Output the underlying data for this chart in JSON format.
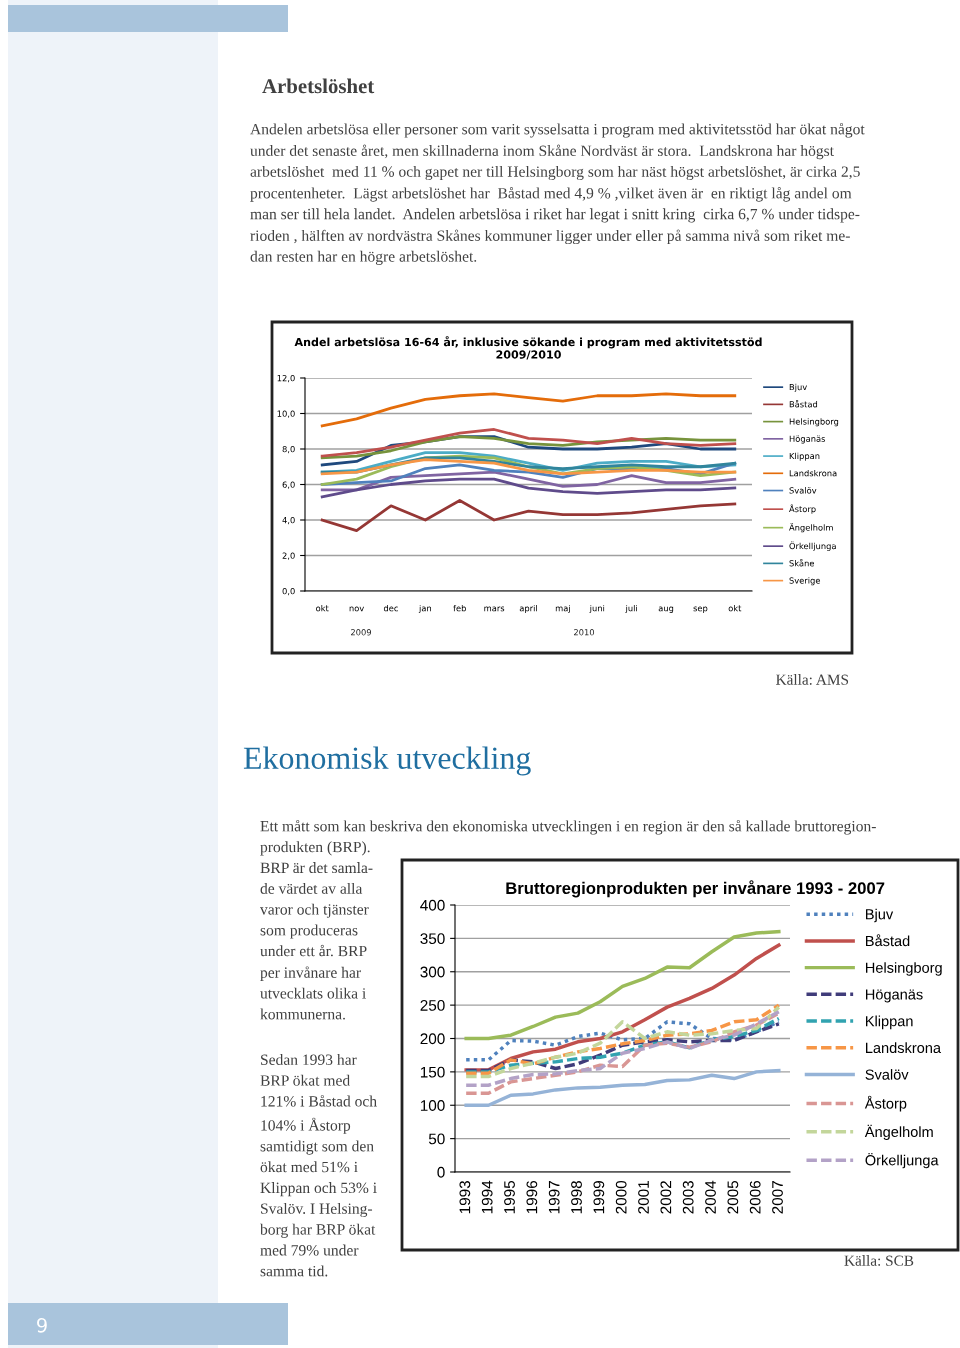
{
  "chart_data": [
    {
      "type": "line",
      "title": "Andel arbetslösa 16-64 år, inklusive sökande i program med aktivitetsstöd\n2009/2010",
      "categories": [
        "okt",
        "nov",
        "dec",
        "jan",
        "feb",
        "mars",
        "april",
        "maj",
        "juni",
        "juli",
        "aug",
        "sep",
        "okt"
      ],
      "series": [
        {
          "name": "Bjuv",
          "color": "#1f497d",
          "values": [
            7.1,
            7.3,
            8.2,
            8.4,
            8.7,
            8.7,
            8.1,
            8.0,
            8.0,
            8.1,
            8.3,
            8.0,
            8.0
          ]
        },
        {
          "name": "Båstad",
          "color": "#953735",
          "values": [
            4.0,
            3.4,
            4.8,
            4.0,
            5.1,
            4.0,
            4.5,
            4.3,
            4.3,
            4.4,
            4.6,
            4.8,
            4.9
          ]
        },
        {
          "name": "Helsingborg",
          "color": "#77933c",
          "values": [
            7.5,
            7.6,
            7.9,
            8.4,
            8.7,
            8.6,
            8.3,
            8.2,
            8.4,
            8.5,
            8.6,
            8.5,
            8.5
          ]
        },
        {
          "name": "Höganäs",
          "color": "#8064a2",
          "values": [
            5.7,
            5.7,
            6.4,
            6.5,
            6.6,
            6.7,
            6.3,
            5.9,
            6.0,
            6.5,
            6.1,
            6.1,
            6.3
          ]
        },
        {
          "name": "Klippan",
          "color": "#4bacc6",
          "values": [
            6.7,
            6.8,
            7.3,
            7.8,
            7.8,
            7.6,
            7.2,
            6.8,
            7.2,
            7.3,
            7.3,
            7.0,
            7.1
          ]
        },
        {
          "name": "Landskrona",
          "color": "#e46c0a",
          "values": [
            9.3,
            9.7,
            10.3,
            10.8,
            11.0,
            11.1,
            10.9,
            10.7,
            11.0,
            11.0,
            11.1,
            11.0,
            11.0
          ]
        },
        {
          "name": "Svalöv",
          "color": "#4f81bd",
          "values": [
            6.0,
            6.1,
            6.2,
            6.9,
            7.1,
            6.8,
            6.7,
            6.4,
            6.9,
            6.9,
            6.9,
            6.6,
            7.2
          ]
        },
        {
          "name": "Åstorp",
          "color": "#c0504d",
          "values": [
            7.6,
            7.8,
            8.1,
            8.5,
            8.9,
            9.1,
            8.6,
            8.5,
            8.3,
            8.6,
            8.3,
            8.2,
            8.3
          ]
        },
        {
          "name": "Ängelholm",
          "color": "#9bbb59",
          "values": [
            6.0,
            6.3,
            7.0,
            7.5,
            7.6,
            7.5,
            7.0,
            6.6,
            6.9,
            7.0,
            6.8,
            6.5,
            6.7
          ]
        },
        {
          "name": "Örkelljunga",
          "color": "#5f4b8b",
          "values": [
            5.3,
            5.7,
            6.0,
            6.2,
            6.3,
            6.3,
            5.8,
            5.6,
            5.5,
            5.6,
            5.7,
            5.7,
            5.8
          ]
        },
        {
          "name": "Skåne",
          "color": "#31859c",
          "values": [
            6.7,
            6.7,
            7.1,
            7.5,
            7.5,
            7.3,
            7.0,
            6.9,
            7.0,
            7.1,
            7.0,
            7.0,
            7.2
          ]
        },
        {
          "name": "Sverige",
          "color": "#f79646",
          "values": [
            6.6,
            6.7,
            7.1,
            7.4,
            7.3,
            7.2,
            6.8,
            6.6,
            6.7,
            6.8,
            6.8,
            6.7,
            6.7
          ]
        }
      ],
      "ylim": [
        0,
        12
      ],
      "yticks": [
        {
          "value": 0,
          "label": "0,0"
        },
        {
          "value": 2,
          "label": "2,0"
        },
        {
          "value": 4,
          "label": "4,0"
        },
        {
          "value": 6,
          "label": "6,0"
        },
        {
          "value": 8,
          "label": "8,0"
        },
        {
          "value": 10,
          "label": "10,0"
        },
        {
          "value": 12,
          "label": "12,0"
        }
      ],
      "grid": "y",
      "legend": "right",
      "line_style": "solid",
      "marker": "none",
      "annotations": [
        "Arbetslöshet",
        "Andelen arbetslösa eller personer som varit sysselsatta i program med aktivitetsstöd har ökat något\nunder det senaste året, men skillnaderna inom Skåne Nordväst är stora.  Landskrona har högst\narbetslöshet  med 11 % och gapet ner till Helsingborg som har näst högst arbetslöshet, är cirka 2,5\nprocentenheter.  Lägst arbetslöshet har  Båstad med 4,9 % ,vilket även är  en riktigt låg andel om\nman ser till hela landet.  Andelen arbetslösa i riket har legat i snitt kring  cirka 6,7 % under tidspe-\nrioden , hälften av nordvästra Skånes kommuner ligger under eller på samma nivå som riket me-\ndan resten har en högre arbetslöshet.",
        "Källa: AMS",
        "2009",
        "2010"
      ]
    },
    {
      "type": "line",
      "title": "Bruttoregionprodukten per invånare 1993 - 2007",
      "categories": [
        "1993",
        "1994",
        "1995",
        "1996",
        "1997",
        "1998",
        "1999",
        "2000",
        "2001",
        "2002",
        "2003",
        "2004",
        "2005",
        "2006",
        "2007"
      ],
      "series": [
        {
          "name": "Bjuv",
          "color": "#4f81bd",
          "line_style": "dotted",
          "values": [
            168,
            168,
            197,
            196,
            190,
            203,
            208,
            198,
            200,
            225,
            222,
            200,
            198,
            210,
            225
          ]
        },
        {
          "name": "Båstad",
          "color": "#c0504d",
          "line_style": "solid",
          "values": [
            153,
            153,
            170,
            180,
            184,
            195,
            200,
            210,
            228,
            247,
            260,
            275,
            295,
            320,
            340
          ]
        },
        {
          "name": "Helsingborg",
          "color": "#9bbb59",
          "line_style": "solid",
          "values": [
            200,
            200,
            205,
            218,
            232,
            238,
            255,
            278,
            290,
            307,
            306,
            330,
            352,
            358,
            360
          ]
        },
        {
          "name": "Höganäs",
          "color": "#403c7a",
          "line_style": "dashed",
          "values": [
            152,
            152,
            168,
            165,
            155,
            162,
            175,
            190,
            195,
            198,
            195,
            197,
            197,
            210,
            222
          ]
        },
        {
          "name": "Klippan",
          "color": "#31a3b0",
          "line_style": "dashed",
          "values": [
            150,
            150,
            160,
            163,
            165,
            170,
            172,
            178,
            190,
            195,
            186,
            198,
            203,
            212,
            230
          ]
        },
        {
          "name": "Landskrona",
          "color": "#f79646",
          "line_style": "dashed",
          "values": [
            148,
            148,
            168,
            162,
            172,
            180,
            185,
            192,
            197,
            205,
            207,
            212,
            225,
            228,
            250
          ]
        },
        {
          "name": "Svalöv",
          "color": "#95b3d7",
          "line_style": "solid",
          "values": [
            100,
            100,
            115,
            117,
            123,
            126,
            127,
            130,
            131,
            137,
            138,
            145,
            140,
            150,
            152
          ]
        },
        {
          "name": "Åstorp",
          "color": "#d99694",
          "line_style": "dashed",
          "values": [
            118,
            118,
            135,
            140,
            145,
            150,
            160,
            158,
            190,
            193,
            187,
            195,
            210,
            220,
            238
          ]
        },
        {
          "name": "Ängelholm",
          "color": "#c3d69b",
          "line_style": "dashed",
          "values": [
            143,
            143,
            155,
            163,
            172,
            178,
            193,
            225,
            200,
            210,
            205,
            207,
            212,
            215,
            247
          ]
        },
        {
          "name": "Örkelljunga",
          "color": "#b3a2c7",
          "line_style": "dashed",
          "values": [
            130,
            130,
            140,
            146,
            147,
            152,
            155,
            178,
            185,
            195,
            185,
            198,
            205,
            222,
            240
          ]
        }
      ],
      "ylim": [
        0,
        400
      ],
      "yticks": [
        0,
        50,
        100,
        150,
        200,
        250,
        300,
        350,
        400
      ],
      "grid": "y",
      "legend": "right",
      "marker": "none",
      "annotations": [
        "Ekonomisk utveckling",
        "Ett mått som kan beskriva den ekonomiska utvecklingen i en region är den så kallade bruttoregion-\nprodukten (BRP).\nBRP är det samla-\nde värdet av alla\nvaror och tjänster\nsom produceras\nunder ett år. BRP\nper invånare har\nutvecklats olika i\nkommunerna.",
        "Sedan 1993 har\nBRP ökat med\n121% i Båstad och\n104% i Åstorp\nsamtidigt som den\nökat med 51% i\nKlippan och 53% i\nSvalöv. I Helsing-\nborg har BRP ökat\nmed 79% under\nsamma tid.",
        "Källa: SCB",
        "9"
      ]
    }
  ]
}
